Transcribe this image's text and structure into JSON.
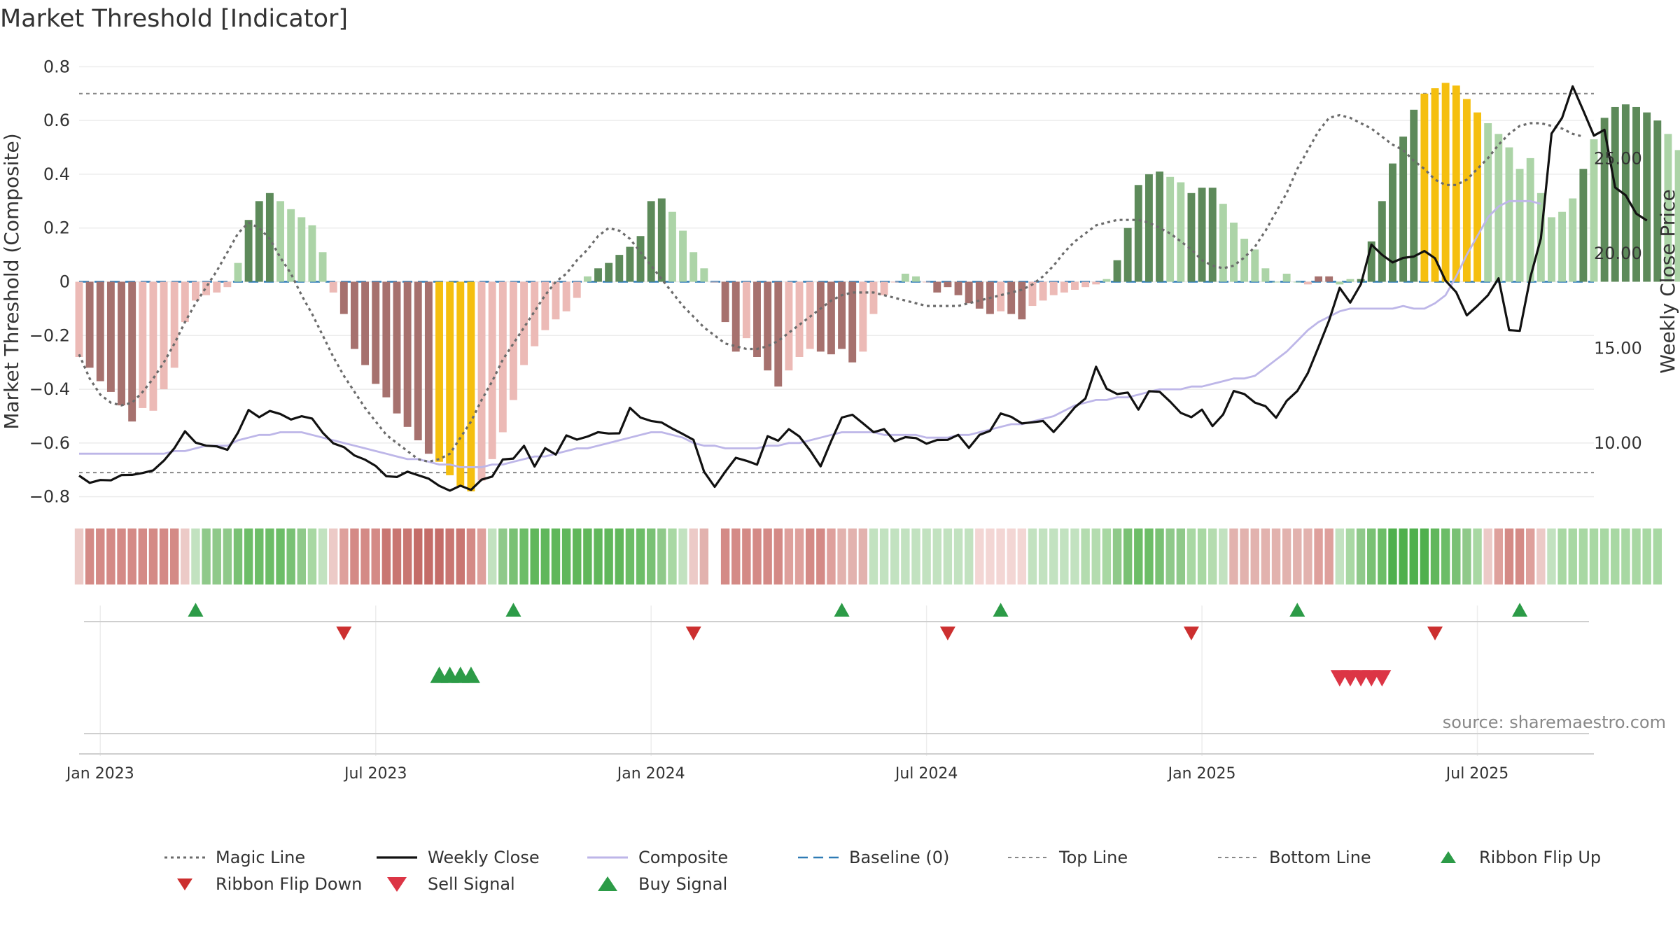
{
  "title": "Market Threshold [Indicator]",
  "source": "source: sharemaestro.com",
  "colors": {
    "pos_dark": "#5d8a5a",
    "pos_light": "#acd4a7",
    "neg_dark": "#a6716e",
    "neg_light": "#ecbab6",
    "extreme": "#f5bf0f",
    "magic": "#6b6b6b",
    "weekly": "#111111",
    "composite": "#bdb6e8",
    "baseline": "#2f7bb5",
    "refline": "#888888",
    "buy": "#2c9b47",
    "sell": "#dc3545",
    "flip_up": "#2c9b47",
    "flip_down": "#cc2f2f"
  },
  "chart_data": {
    "type": "bar",
    "title": "Market Threshold [Indicator]",
    "ylabel": "Market Threshold (Composite)",
    "ylabel_right": "Weekly Close Price",
    "ylim": [
      -0.84,
      0.84
    ],
    "ylim_right": [
      6.6,
      30.4
    ],
    "yticks": [
      {
        "v": 0.8,
        "label": "0.8"
      },
      {
        "v": 0.6,
        "label": "0.6"
      },
      {
        "v": 0.4,
        "label": "0.4"
      },
      {
        "v": 0.2,
        "label": "0.2"
      },
      {
        "v": 0,
        "label": "0"
      },
      {
        "v": -0.2,
        "label": "−0.2"
      },
      {
        "v": -0.4,
        "label": "−0.4"
      },
      {
        "v": -0.6,
        "label": "−0.6"
      },
      {
        "v": -0.8,
        "label": "−0.8"
      }
    ],
    "yticks_right": [
      {
        "v": 25,
        "label": "25.00"
      },
      {
        "v": 20,
        "label": "20.00"
      },
      {
        "v": 15,
        "label": "15.00"
      },
      {
        "v": 10,
        "label": "10.00"
      }
    ],
    "x_week_range": [
      -2,
      141
    ],
    "xticks": [
      {
        "week": 0,
        "label": "Jan 2023"
      },
      {
        "week": 26,
        "label": "Jul 2023"
      },
      {
        "week": 52,
        "label": "Jan 2024"
      },
      {
        "week": 78,
        "label": "Jul 2024"
      },
      {
        "week": 104,
        "label": "Jan 2025"
      },
      {
        "week": 130,
        "label": "Jul 2025"
      }
    ],
    "top_line": 0.7,
    "bottom_line": -0.71,
    "baseline": 0,
    "composite_bars": {
      "start_week": -2,
      "values": [
        -0.28,
        -0.32,
        -0.37,
        -0.41,
        -0.46,
        -0.52,
        -0.47,
        -0.48,
        -0.4,
        -0.32,
        -0.15,
        -0.07,
        -0.05,
        -0.04,
        -0.02,
        0.07,
        0.23,
        0.3,
        0.33,
        0.3,
        0.27,
        0.24,
        0.21,
        0.11,
        -0.04,
        -0.12,
        -0.25,
        -0.31,
        -0.38,
        -0.43,
        -0.49,
        -0.54,
        -0.59,
        -0.64,
        -0.67,
        -0.72,
        -0.76,
        -0.78,
        -0.74,
        -0.66,
        -0.56,
        -0.44,
        -0.31,
        -0.24,
        -0.18,
        -0.14,
        -0.11,
        -0.06,
        0.02,
        0.05,
        0.07,
        0.1,
        0.13,
        0.17,
        0.3,
        0.31,
        0.26,
        0.19,
        0.11,
        0.05,
        0,
        -0.15,
        -0.26,
        -0.21,
        -0.28,
        -0.33,
        -0.39,
        -0.33,
        -0.28,
        -0.25,
        -0.26,
        -0.27,
        -0.25,
        -0.3,
        -0.26,
        -0.12,
        -0.05,
        0,
        0.03,
        0.02,
        0,
        -0.04,
        -0.02,
        -0.05,
        -0.08,
        -0.1,
        -0.12,
        -0.11,
        -0.12,
        -0.14,
        -0.09,
        -0.07,
        -0.05,
        -0.04,
        -0.03,
        -0.02,
        -0.01,
        0.01,
        0.08,
        0.2,
        0.36,
        0.4,
        0.41,
        0.39,
        0.37,
        0.33,
        0.35,
        0.35,
        0.29,
        0.22,
        0.16,
        0.12,
        0.05,
        0,
        0.03,
        0,
        -0.01,
        0.02,
        0.02,
        -0.01,
        0.01,
        0.01,
        0.15,
        0.3,
        0.44,
        0.54,
        0.64,
        0.7,
        0.72,
        0.74,
        0.73,
        0.68,
        0.63,
        0.59,
        0.55,
        0.5,
        0.42,
        0.46,
        0.33,
        0.24,
        0.26,
        0.31,
        0.42,
        0.53,
        0.61,
        0.65,
        0.66,
        0.65,
        0.63,
        0.6,
        0.55,
        0.49
      ],
      "colors": [
        "nl",
        "nd",
        "nd",
        "nd",
        "nd",
        "nd",
        "nl",
        "nl",
        "nl",
        "nl",
        "nl",
        "nl",
        "nl",
        "nl",
        "nl",
        "pl",
        "pd",
        "pd",
        "pd",
        "pl",
        "pl",
        "pl",
        "pl",
        "pl",
        "nl",
        "nd",
        "nd",
        "nd",
        "nd",
        "nd",
        "nd",
        "nd",
        "nd",
        "nd",
        "e",
        "e",
        "e",
        "e",
        "nl",
        "nl",
        "nl",
        "nl",
        "nl",
        "nl",
        "nl",
        "nl",
        "nl",
        "nl",
        "pl",
        "pd",
        "pd",
        "pd",
        "pd",
        "pd",
        "pd",
        "pd",
        "pl",
        "pl",
        "pl",
        "pl",
        "nl",
        "nd",
        "nd",
        "nl",
        "nd",
        "nd",
        "nd",
        "nl",
        "nl",
        "nl",
        "nd",
        "nd",
        "nd",
        "nd",
        "nl",
        "nl",
        "nl",
        "nl",
        "pl",
        "pl",
        "nl",
        "nd",
        "nd",
        "nd",
        "nd",
        "nd",
        "nd",
        "nl",
        "nd",
        "nd",
        "nl",
        "nl",
        "nl",
        "nl",
        "nl",
        "nl",
        "nl",
        "pl",
        "pd",
        "pd",
        "pd",
        "pd",
        "pd",
        "pl",
        "pl",
        "pd",
        "pd",
        "pd",
        "pl",
        "pl",
        "pl",
        "pl",
        "pl",
        "pl",
        "pl",
        "pl",
        "nl",
        "nd",
        "nd",
        "pl",
        "pl",
        "pd",
        "pd",
        "pd",
        "pd",
        "pd",
        "pd",
        "e",
        "e",
        "e",
        "e",
        "e",
        "e",
        "pl",
        "pl",
        "pl",
        "pl",
        "pl",
        "pl",
        "pl",
        "pl",
        "pl",
        "pd",
        "pl",
        "pd",
        "pd",
        "pd",
        "pd",
        "pd",
        "pd",
        "pl",
        "pl",
        "pl",
        "pl"
      ]
    },
    "series": [
      {
        "name": "Magic Line",
        "axis": "left",
        "values": [
          -0.27,
          -0.36,
          -0.42,
          -0.45,
          -0.46,
          -0.45,
          -0.41,
          -0.36,
          -0.3,
          -0.23,
          -0.15,
          -0.08,
          -0.02,
          0.04,
          0.11,
          0.18,
          0.22,
          0.2,
          0.16,
          0.09,
          0.03,
          -0.05,
          -0.12,
          -0.2,
          -0.28,
          -0.35,
          -0.41,
          -0.47,
          -0.52,
          -0.57,
          -0.6,
          -0.63,
          -0.66,
          -0.67,
          -0.66,
          -0.64,
          -0.58,
          -0.52,
          -0.44,
          -0.37,
          -0.29,
          -0.23,
          -0.17,
          -0.11,
          -0.05,
          0,
          0.03,
          0.08,
          0.12,
          0.17,
          0.2,
          0.19,
          0.16,
          0.11,
          0.06,
          0.01,
          -0.04,
          -0.09,
          -0.13,
          -0.17,
          -0.2,
          -0.23,
          -0.24,
          -0.25,
          -0.25,
          -0.24,
          -0.22,
          -0.19,
          -0.16,
          -0.13,
          -0.1,
          -0.07,
          -0.05,
          -0.04,
          -0.04,
          -0.04,
          -0.05,
          -0.06,
          -0.07,
          -0.08,
          -0.09,
          -0.09,
          -0.09,
          -0.09,
          -0.08,
          -0.07,
          -0.06,
          -0.05,
          -0.04,
          -0.03,
          -0.01,
          0.02,
          0.06,
          0.11,
          0.15,
          0.18,
          0.21,
          0.22,
          0.23,
          0.23,
          0.23,
          0.22,
          0.2,
          0.18,
          0.15,
          0.12,
          0.08,
          0.06,
          0.05,
          0.06,
          0.09,
          0.13,
          0.19,
          0.26,
          0.33,
          0.42,
          0.49,
          0.56,
          0.61,
          0.62,
          0.61,
          0.59,
          0.57,
          0.54,
          0.51,
          0.49,
          0.45,
          0.42,
          0.38,
          0.36,
          0.36,
          0.38,
          0.42,
          0.46,
          0.51,
          0.55,
          0.58,
          0.59,
          0.59,
          0.58,
          0.57,
          0.55,
          0.54
        ]
      },
      {
        "name": "Weekly Close",
        "axis": "right",
        "values": [
          8.28,
          7.9,
          8.05,
          8.03,
          8.31,
          8.32,
          8.42,
          8.56,
          9.07,
          9.73,
          10.62,
          10.02,
          9.86,
          9.82,
          9.64,
          10.55,
          11.74,
          11.36,
          11.69,
          11.53,
          11.24,
          11.41,
          11.29,
          10.54,
          9.98,
          9.78,
          9.34,
          9.12,
          8.79,
          8.25,
          8.21,
          8.49,
          8.3,
          8.12,
          7.74,
          7.49,
          7.75,
          7.53,
          8.07,
          8.23,
          9.13,
          9.18,
          9.85,
          8.76,
          9.73,
          9.39,
          10.4,
          10.18,
          10.34,
          10.57,
          10.5,
          10.51,
          11.85,
          11.34,
          11.16,
          11.08,
          10.76,
          10.47,
          10.17,
          8.49,
          7.69,
          8.49,
          9.22,
          9.06,
          8.86,
          10.36,
          10.12,
          10.73,
          10.34,
          9.61,
          8.77,
          10.1,
          11.34,
          11.49,
          11.04,
          10.57,
          10.73,
          10.09,
          10.31,
          10.26,
          9.96,
          10.16,
          10.17,
          10.43,
          9.74,
          10.43,
          10.64,
          11.56,
          11.38,
          11.03,
          11.09,
          11.16,
          10.58,
          11.21,
          11.88,
          12.34,
          14.02,
          12.86,
          12.58,
          12.66,
          11.76,
          12.73,
          12.7,
          12.18,
          11.59,
          11.36,
          11.76,
          10.89,
          11.5,
          12.74,
          12.58,
          12.13,
          11.94,
          11.33,
          12.22,
          12.74,
          13.69,
          15.05,
          16.46,
          18.18,
          17.4,
          18.37,
          20.46,
          19.92,
          19.52,
          19.76,
          19.83,
          20.12,
          19.74,
          18.56,
          17.95,
          16.73,
          17.23,
          17.79,
          18.68,
          15.95,
          15.91,
          18.73,
          20.79,
          26.31,
          27.14,
          28.8,
          27.52,
          26.2,
          26.51,
          23.47,
          23.06,
          22.09,
          21.73
        ]
      },
      {
        "name": "Composite",
        "axis": "left",
        "values": [
          -0.64,
          -0.64,
          -0.64,
          -0.64,
          -0.64,
          -0.64,
          -0.64,
          -0.64,
          -0.64,
          -0.63,
          -0.63,
          -0.62,
          -0.61,
          -0.61,
          -0.61,
          -0.59,
          -0.58,
          -0.57,
          -0.57,
          -0.56,
          -0.56,
          -0.56,
          -0.57,
          -0.58,
          -0.59,
          -0.6,
          -0.61,
          -0.62,
          -0.63,
          -0.64,
          -0.65,
          -0.66,
          -0.66,
          -0.67,
          -0.68,
          -0.68,
          -0.69,
          -0.69,
          -0.69,
          -0.68,
          -0.68,
          -0.67,
          -0.66,
          -0.65,
          -0.65,
          -0.64,
          -0.63,
          -0.62,
          -0.62,
          -0.61,
          -0.6,
          -0.59,
          -0.58,
          -0.57,
          -0.56,
          -0.56,
          -0.57,
          -0.58,
          -0.6,
          -0.61,
          -0.61,
          -0.62,
          -0.62,
          -0.62,
          -0.62,
          -0.61,
          -0.61,
          -0.6,
          -0.6,
          -0.59,
          -0.58,
          -0.57,
          -0.56,
          -0.56,
          -0.56,
          -0.56,
          -0.57,
          -0.57,
          -0.57,
          -0.57,
          -0.58,
          -0.58,
          -0.58,
          -0.57,
          -0.57,
          -0.56,
          -0.55,
          -0.54,
          -0.53,
          -0.53,
          -0.52,
          -0.51,
          -0.5,
          -0.48,
          -0.46,
          -0.45,
          -0.44,
          -0.44,
          -0.43,
          -0.43,
          -0.42,
          -0.41,
          -0.4,
          -0.4,
          -0.4,
          -0.39,
          -0.39,
          -0.38,
          -0.37,
          -0.36,
          -0.36,
          -0.35,
          -0.32,
          -0.29,
          -0.26,
          -0.22,
          -0.18,
          -0.15,
          -0.13,
          -0.11,
          -0.1,
          -0.1,
          -0.1,
          -0.1,
          -0.1,
          -0.09,
          -0.1,
          -0.1,
          -0.08,
          -0.05,
          0.02,
          0.1,
          0.17,
          0.24,
          0.28,
          0.3,
          0.3,
          0.3,
          0.29
        ]
      }
    ],
    "ribbon": {
      "start_week": -2,
      "gaps": [
        60
      ],
      "colors": [
        "#eccac7",
        "#d48a86",
        "#d48a86",
        "#d48a86",
        "#d48a86",
        "#d48a86",
        "#d48a86",
        "#d48a86",
        "#d48a86",
        "#d48a86",
        "#eccac7",
        "#c2e2c0",
        "#8fc98a",
        "#8fc98a",
        "#8fc98a",
        "#79c174",
        "#6cbd67",
        "#6cbd67",
        "#6cbd67",
        "#6cbd67",
        "#79c174",
        "#8fc98a",
        "#a8d8a3",
        "#c2e2c0",
        "#eccac7",
        "#dea09c",
        "#d48a86",
        "#d48a86",
        "#d48a86",
        "#c97672",
        "#c97672",
        "#c97672",
        "#c46c68",
        "#c46c68",
        "#c46c68",
        "#c97672",
        "#c97672",
        "#d48a86",
        "#dea09c",
        "#c2e2c0",
        "#8fc98a",
        "#79c174",
        "#6cbd67",
        "#60b75b",
        "#60b75b",
        "#60b75b",
        "#60b75b",
        "#60b75b",
        "#60b75b",
        "#60b75b",
        "#60b75b",
        "#60b75b",
        "#6cbd67",
        "#6cbd67",
        "#79c174",
        "#8fc98a",
        "#a8d8a3",
        "#c2e2c0",
        "#eccac7",
        "#e2b2ae",
        "#ffffff",
        "#d48a86",
        "#d48a86",
        "#d48a86",
        "#d48a86",
        "#d48a86",
        "#d48a86",
        "#dea09c",
        "#dea09c",
        "#d48a86",
        "#d48a86",
        "#dea09c",
        "#e2b2ae",
        "#e2b2ae",
        "#e2b2ae",
        "#c2e2c0",
        "#c2e2c0",
        "#c2e2c0",
        "#c2e2c0",
        "#c2e2c0",
        "#c2e2c0",
        "#c2e2c0",
        "#c2e2c0",
        "#c2e2c0",
        "#c2e2c0",
        "#f3d6d4",
        "#f3d6d4",
        "#f3d6d4",
        "#f3d6d4",
        "#f3d6d4",
        "#c2e2c0",
        "#c2e2c0",
        "#c2e2c0",
        "#c2e2c0",
        "#c2e2c0",
        "#b4dcaf",
        "#b4dcaf",
        "#a8d8a3",
        "#8fc98a",
        "#79c174",
        "#6cbd67",
        "#6cbd67",
        "#79c174",
        "#8fc98a",
        "#8fc98a",
        "#a8d8a3",
        "#a8d8a3",
        "#b4dcaf",
        "#c2e2c0",
        "#e2b2ae",
        "#e2b2ae",
        "#e2b2ae",
        "#e2b2ae",
        "#e2b2ae",
        "#e2b2ae",
        "#e2b2ae",
        "#e2b2ae",
        "#dea09c",
        "#dea09c",
        "#c2e2c0",
        "#a8d8a3",
        "#8fc98a",
        "#79c174",
        "#6cbd67",
        "#4fb04d",
        "#4fb04d",
        "#4fb04d",
        "#4fb04d",
        "#60b75b",
        "#6cbd67",
        "#79c174",
        "#8fc98a",
        "#a8d8a3",
        "#eccac7",
        "#dea09c",
        "#d48a86",
        "#d48a86",
        "#dea09c",
        "#eccac7",
        "#c2e2c0",
        "#a8d8a3",
        "#a8d8a3",
        "#a8d8a3",
        "#a8d8a3",
        "#a8d8a3",
        "#a8d8a3",
        "#a8d8a3",
        "#a8d8a3",
        "#a8d8a3",
        "#a8d8a3"
      ]
    },
    "ribbon_flip_up_weeks": [
      9,
      39,
      70,
      85,
      113,
      134
    ],
    "ribbon_flip_down_weeks": [
      23,
      56,
      80,
      103,
      126
    ],
    "buy_signal_weeks": [
      32,
      33,
      34,
      35
    ],
    "sell_signal_weeks": [
      117,
      118,
      119,
      120,
      121
    ]
  },
  "legend": [
    {
      "key": "magic",
      "label": "Magic Line"
    },
    {
      "key": "weekly",
      "label": "Weekly Close"
    },
    {
      "key": "composite",
      "label": "Composite"
    },
    {
      "key": "baseline",
      "label": "Baseline (0)"
    },
    {
      "key": "top",
      "label": "Top Line"
    },
    {
      "key": "bottom",
      "label": "Bottom Line"
    },
    {
      "key": "flip_up",
      "label": "Ribbon Flip Up"
    },
    {
      "key": "flip_down",
      "label": "Ribbon Flip Down"
    },
    {
      "key": "sell",
      "label": "Sell Signal"
    },
    {
      "key": "buy",
      "label": "Buy Signal"
    }
  ]
}
